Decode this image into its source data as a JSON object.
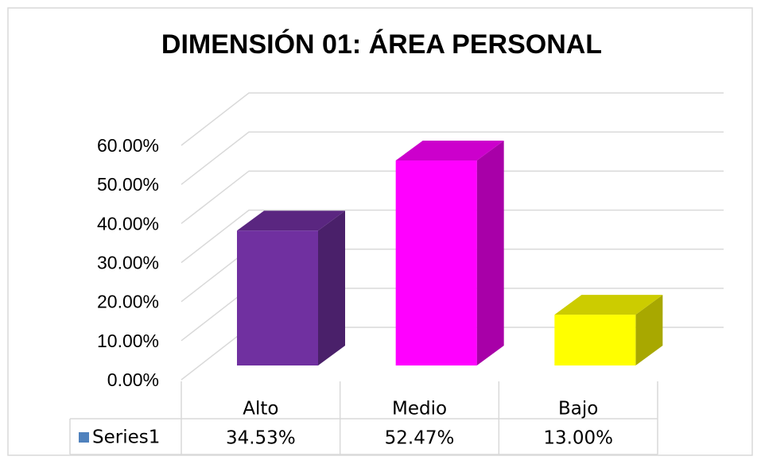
{
  "chart_data": {
    "type": "bar3d",
    "title": "DIMENSIÓN 01: ÁREA PERSONAL",
    "categories": [
      "Alto",
      "Medio",
      "Bajo"
    ],
    "series": [
      {
        "name": "Series1",
        "color": "#4f81bd",
        "values": [
          34.53,
          52.47,
          13.0
        ],
        "value_labels": [
          "34.53%",
          "52.47%",
          "13.00%"
        ],
        "point_colors": [
          "#7030a0",
          "#ff00ff",
          "#ffff00"
        ]
      }
    ],
    "ylim": [
      0,
      60
    ],
    "yticks": [
      {
        "value": 0,
        "label": "0.00%"
      },
      {
        "value": 10,
        "label": "10.00%"
      },
      {
        "value": 20,
        "label": "20.00%"
      },
      {
        "value": 30,
        "label": "30.00%"
      },
      {
        "value": 40,
        "label": "40.00%"
      },
      {
        "value": 50,
        "label": "50.00%"
      },
      {
        "value": 60,
        "label": "60.00%"
      }
    ],
    "grid": true,
    "data_table": true
  }
}
